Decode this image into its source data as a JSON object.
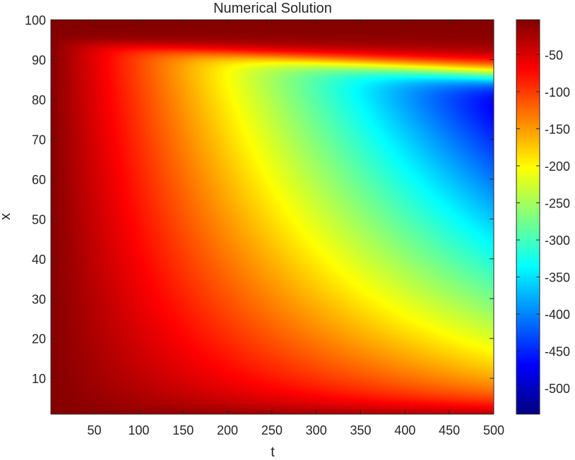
{
  "chart_data": {
    "type": "heatmap",
    "title": "Numerical Solution",
    "xlabel": "t",
    "ylabel": "x",
    "xlim": [
      1,
      500
    ],
    "ylim": [
      1,
      100
    ],
    "x_ticks": [
      50,
      100,
      150,
      200,
      250,
      300,
      350,
      400,
      450,
      500
    ],
    "y_ticks": [
      10,
      20,
      30,
      40,
      50,
      60,
      70,
      80,
      90,
      100
    ],
    "colormap": "jet",
    "colorbar": {
      "range": [
        -535,
        -3
      ],
      "ticks": [
        -50,
        -100,
        -150,
        -200,
        -250,
        -300,
        -350,
        -400,
        -450,
        -500
      ]
    },
    "field": {
      "description_points": [
        {
          "t": 1,
          "x": 50,
          "value": -5
        },
        {
          "t": 100,
          "x": 50,
          "value": -70
        },
        {
          "t": 250,
          "x": 50,
          "value": -190
        },
        {
          "t": 400,
          "x": 50,
          "value": -330
        },
        {
          "t": 500,
          "x": 80,
          "value": -530
        },
        {
          "t": 500,
          "x": 10,
          "value": -150
        },
        {
          "t": 500,
          "x": 100,
          "value": -20
        }
      ],
      "min": -535,
      "max": -3
    }
  }
}
